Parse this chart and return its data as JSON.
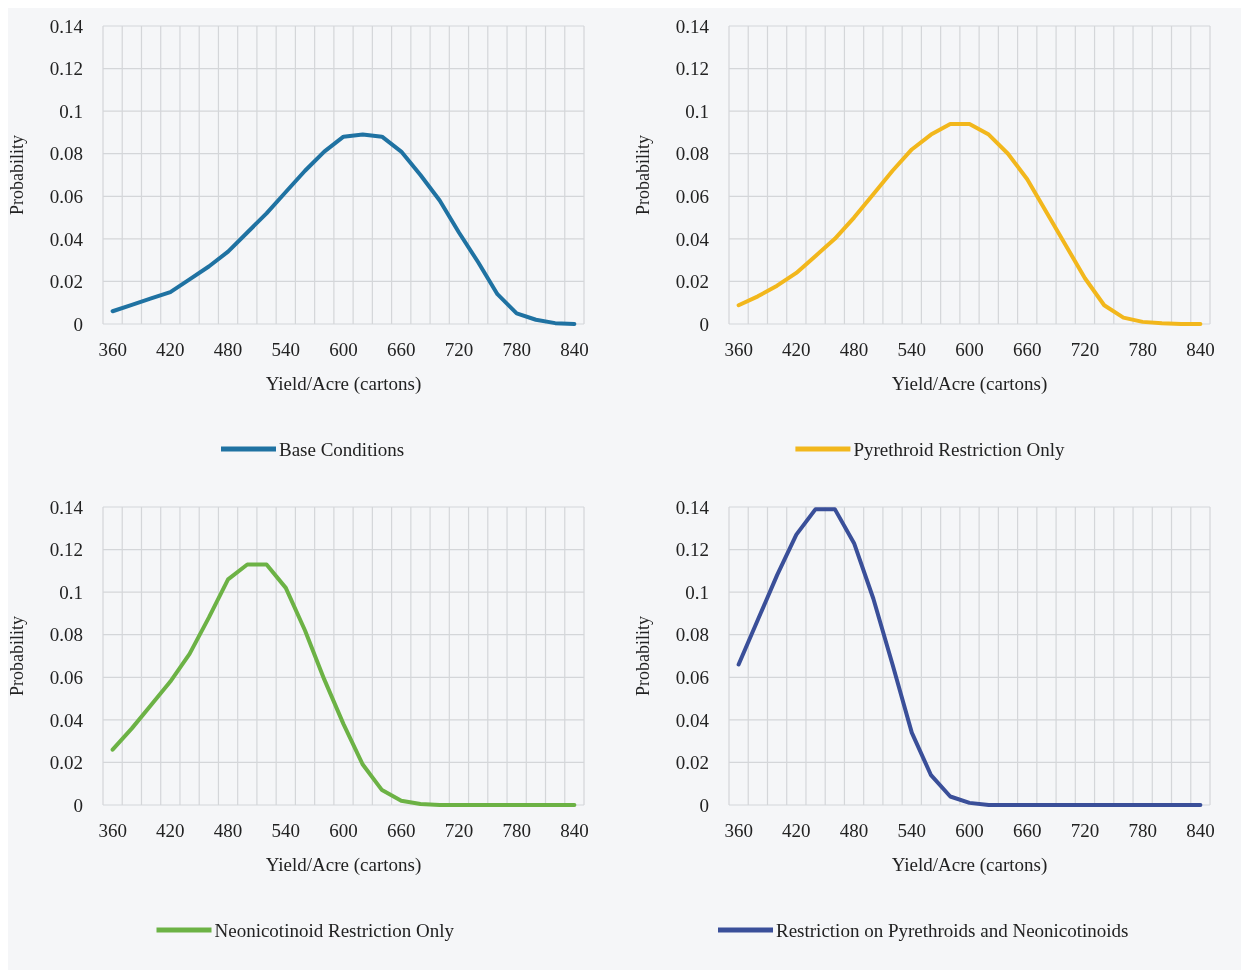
{
  "chart_data": [
    {
      "type": "line",
      "categories": [
        "360",
        null,
        null,
        "420",
        null,
        null,
        "480",
        null,
        null,
        "540",
        null,
        null,
        "600",
        null,
        null,
        "660",
        null,
        null,
        "720",
        null,
        null,
        "780",
        null,
        null,
        "840"
      ],
      "xlabel": "Yield/Acre (cartons)",
      "ylabel": "Probability",
      "ylim": [
        0,
        0.14
      ],
      "yticks": [
        0,
        0.02,
        0.04,
        0.06,
        0.08,
        0.1,
        0.12,
        0.14
      ],
      "grid": true,
      "legend": "bottom",
      "series": [
        {
          "name": "Base Conditions",
          "color": "#1f72a2",
          "values": [
            0.006,
            0.009,
            0.012,
            0.015,
            0.021,
            0.027,
            0.034,
            0.043,
            0.052,
            0.062,
            0.072,
            0.081,
            0.088,
            0.089,
            0.088,
            0.081,
            0.07,
            0.058,
            0.043,
            0.029,
            0.014,
            0.005,
            0.002,
            0.0004,
            0
          ]
        }
      ]
    },
    {
      "type": "line",
      "categories": [
        "360",
        null,
        null,
        "420",
        null,
        null,
        "480",
        null,
        null,
        "540",
        null,
        null,
        "600",
        null,
        null,
        "660",
        null,
        null,
        "720",
        null,
        null,
        "780",
        null,
        null,
        "840"
      ],
      "xlabel": "Yield/Acre (cartons)",
      "ylabel": "Probability",
      "ylim": [
        0,
        0.14
      ],
      "yticks": [
        0,
        0.02,
        0.04,
        0.06,
        0.08,
        0.1,
        0.12,
        0.14
      ],
      "grid": true,
      "legend": "bottom",
      "series": [
        {
          "name": "Pyrethroid Restriction Only",
          "color": "#f2b71c",
          "values": [
            0.0088,
            0.013,
            0.018,
            0.024,
            0.032,
            0.04,
            0.05,
            0.061,
            0.072,
            0.082,
            0.089,
            0.094,
            0.094,
            0.089,
            0.08,
            0.068,
            0.0525,
            0.037,
            0.0215,
            0.0088,
            0.003,
            0.001,
            0.0004,
            0,
            0
          ]
        }
      ]
    },
    {
      "type": "line",
      "categories": [
        "360",
        null,
        null,
        "420",
        null,
        null,
        "480",
        null,
        null,
        "540",
        null,
        null,
        "600",
        null,
        null,
        "660",
        null,
        null,
        "720",
        null,
        null,
        "780",
        null,
        null,
        "840"
      ],
      "xlabel": "Yield/Acre (cartons)",
      "ylabel": "Probability",
      "ylim": [
        0,
        0.14
      ],
      "yticks": [
        0,
        0.02,
        0.04,
        0.06,
        0.08,
        0.1,
        0.12,
        0.14
      ],
      "grid": true,
      "legend": "bottom",
      "series": [
        {
          "name": "Neonicotinoid Restriction Only",
          "color": "#6cb245",
          "values": [
            0.026,
            0.036,
            0.047,
            0.058,
            0.071,
            0.088,
            0.106,
            0.113,
            0.113,
            0.102,
            0.082,
            0.059,
            0.038,
            0.019,
            0.007,
            0.002,
            0.0005,
            0,
            0,
            0,
            0,
            0,
            0,
            0,
            0
          ]
        }
      ]
    },
    {
      "type": "line",
      "categories": [
        "360",
        null,
        null,
        "420",
        null,
        null,
        "480",
        null,
        null,
        "540",
        null,
        null,
        "600",
        null,
        null,
        "660",
        null,
        null,
        "720",
        null,
        null,
        "780",
        null,
        null,
        "840"
      ],
      "xlabel": "Yield/Acre (cartons)",
      "ylabel": "Probability",
      "ylim": [
        0,
        0.14
      ],
      "yticks": [
        0,
        0.02,
        0.04,
        0.06,
        0.08,
        0.1,
        0.12,
        0.14
      ],
      "grid": true,
      "legend": "bottom",
      "series": [
        {
          "name": "Restriction on Pyrethroids and Neonicotinoids",
          "color": "#3a4f99",
          "values": [
            0.066,
            0.087,
            0.108,
            0.127,
            0.139,
            0.139,
            0.123,
            0.097,
            0.066,
            0.034,
            0.014,
            0.004,
            0.001,
            0,
            0,
            0,
            0,
            0,
            0,
            0,
            0,
            0,
            0,
            0,
            0
          ]
        }
      ]
    }
  ]
}
